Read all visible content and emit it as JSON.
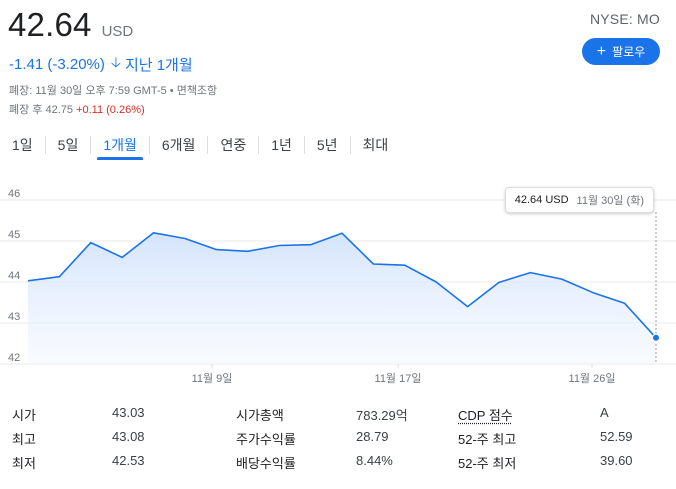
{
  "quote": {
    "price": "42.64",
    "currency": "USD",
    "change": "-1.41 (-3.20%)",
    "period": "지난 1개월",
    "close_info": "폐장: 11월 30일 오후 7:59 GMT-5 • 면책조항",
    "after_hours_label": "폐장 후 42.75",
    "after_hours_change": "+0.11 (0.26%)",
    "ticker": "NYSE: MO"
  },
  "follow_button": {
    "label": "팔로우",
    "icon": "plus-icon"
  },
  "tabs": [
    "1일",
    "5일",
    "1개월",
    "6개월",
    "연중",
    "1년",
    "5년",
    "최대"
  ],
  "active_tab": "1개월",
  "tooltip": {
    "price": "42.64 USD",
    "date": "11월 30일 (화)"
  },
  "chart_data": {
    "type": "area",
    "y_ticks": [
      "46",
      "45",
      "44",
      "43",
      "42"
    ],
    "x_tick_labels": [
      "11월 9일",
      "11월 17일",
      "11월 26일"
    ],
    "ylim": [
      42,
      46
    ],
    "values": [
      44.03,
      44.13,
      44.96,
      44.6,
      45.2,
      45.06,
      44.79,
      44.75,
      44.89,
      44.91,
      45.19,
      44.44,
      44.41,
      44.0,
      43.4,
      43.99,
      44.23,
      44.07,
      43.74,
      43.48,
      42.64
    ],
    "grid": true,
    "line_color": "#1a73e8",
    "fill_color": "#e8f0fe"
  },
  "stats": [
    {
      "l1": "시가",
      "v1": "43.03",
      "l2": "시가총액",
      "v2": "783.29억",
      "l3": "CDP 점수",
      "v3": "A"
    },
    {
      "l1": "최고",
      "v1": "43.08",
      "l2": "주가수익률",
      "v2": "28.79",
      "l3": "52-주 최고",
      "v3": "52.59"
    },
    {
      "l1": "최저",
      "v1": "42.53",
      "l2": "배당수익률",
      "v2": "8.44%",
      "l3": "52-주 최저",
      "v3": "39.60"
    }
  ]
}
